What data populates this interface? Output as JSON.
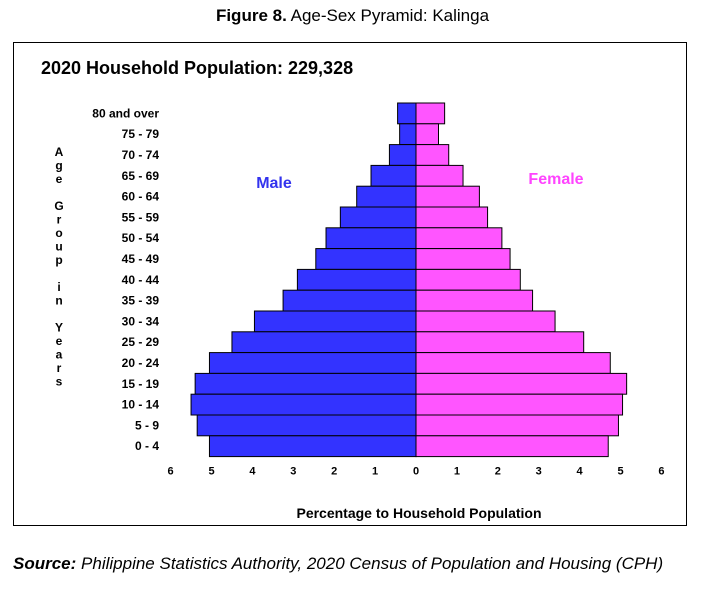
{
  "figure": {
    "number": "Figure 8.",
    "title": "Age-Sex Pyramid: Kalinga"
  },
  "source": {
    "label": "Source:",
    "text": "Philippine Statistics Authority, 2020 Census of Population and Housing (CPH)"
  },
  "colors": {
    "male": "#3333ff",
    "female": "#ff55ff",
    "male_label": "#3333ee",
    "female_label": "#ff44ff"
  },
  "chart_data": {
    "type": "bar",
    "orientation": "horizontal-pyramid",
    "title": "2020 Household Population: 229,328",
    "ylabel": "Age Group in Years",
    "xlabel": "Percentage to Household Population",
    "x_ticks": [
      "6",
      "5",
      "4",
      "3",
      "2",
      "1",
      "0",
      "1",
      "2",
      "3",
      "4",
      "5",
      "6"
    ],
    "xlim": [
      -6,
      6
    ],
    "categories": [
      "80 and over",
      "75 - 79",
      "70 - 74",
      "65 - 69",
      "60 - 64",
      "55 - 59",
      "50 - 54",
      "45 - 49",
      "40 - 44",
      "35 - 39",
      "30 - 34",
      "25 - 29",
      "20 - 24",
      "15 - 19",
      "10 - 14",
      "5 - 9",
      "0 - 4"
    ],
    "series": [
      {
        "name": "Male",
        "values": [
          0.45,
          0.4,
          0.65,
          1.1,
          1.45,
          1.85,
          2.2,
          2.45,
          2.9,
          3.25,
          3.95,
          4.5,
          5.05,
          5.4,
          5.5,
          5.35,
          5.05
        ]
      },
      {
        "name": "Female",
        "values": [
          0.7,
          0.55,
          0.8,
          1.15,
          1.55,
          1.75,
          2.1,
          2.3,
          2.55,
          2.85,
          3.4,
          4.1,
          4.75,
          5.15,
          5.05,
          4.95,
          4.7
        ]
      }
    ]
  }
}
